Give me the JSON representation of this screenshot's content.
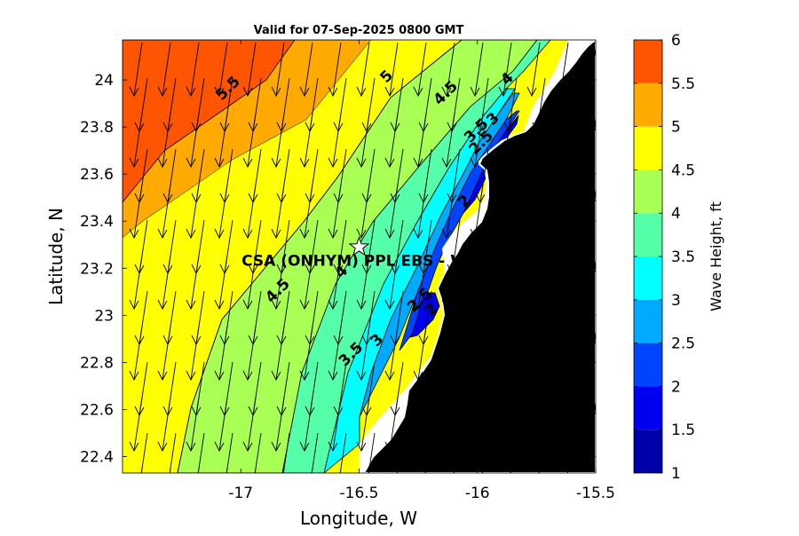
{
  "chart_data": {
    "type": "heatmap",
    "title": "Valid for 07-Sep-2025 0800 GMT",
    "xlabel": "Longitude, W",
    "ylabel": "Latitude, N",
    "xlim": [
      -17.5,
      -15.5
    ],
    "ylim": [
      22.33,
      24.17
    ],
    "x_ticks": [
      -17,
      -16.5,
      -16,
      -15.5
    ],
    "y_ticks": [
      22.4,
      22.6,
      22.8,
      23,
      23.2,
      23.4,
      23.6,
      23.8,
      24
    ],
    "colorbar": {
      "label": "Wave Height, ft",
      "ticks": [
        1,
        1.5,
        2,
        2.5,
        3,
        3.5,
        4,
        4.5,
        5,
        5.5,
        6
      ],
      "levels": [
        {
          "from": 1.0,
          "to": 1.5,
          "color": "#0000aa"
        },
        {
          "from": 1.5,
          "to": 2.0,
          "color": "#0000f0"
        },
        {
          "from": 2.0,
          "to": 2.5,
          "color": "#0044ff"
        },
        {
          "from": 2.5,
          "to": 3.0,
          "color": "#00aaff"
        },
        {
          "from": 3.0,
          "to": 3.5,
          "color": "#00ffff"
        },
        {
          "from": 3.5,
          "to": 4.0,
          "color": "#55ffaa"
        },
        {
          "from": 4.0,
          "to": 4.5,
          "color": "#aaff55"
        },
        {
          "from": 4.5,
          "to": 5.0,
          "color": "#ffff00"
        },
        {
          "from": 5.0,
          "to": 5.5,
          "color": "#ffaa00"
        },
        {
          "from": 5.5,
          "to": 6.0,
          "color": "#ff5500"
        }
      ]
    },
    "contour_labels": [
      {
        "text": "5.5",
        "lon": -17.04,
        "lat": 23.95
      },
      {
        "text": "5",
        "lon": -16.37,
        "lat": 24.0
      },
      {
        "text": "4.5",
        "lon": -16.12,
        "lat": 23.93
      },
      {
        "text": "4",
        "lon": -15.86,
        "lat": 23.99
      },
      {
        "text": "3.5",
        "lon": -15.99,
        "lat": 23.77
      },
      {
        "text": "3",
        "lon": -15.92,
        "lat": 23.82
      },
      {
        "text": "2.5",
        "lon": -15.97,
        "lat": 23.72
      },
      {
        "text": "2",
        "lon": -16.04,
        "lat": 23.47
      },
      {
        "text": "4.5",
        "lon": -16.83,
        "lat": 23.09
      },
      {
        "text": "4",
        "lon": -16.56,
        "lat": 23.17
      },
      {
        "text": "3.5",
        "lon": -16.52,
        "lat": 22.82
      },
      {
        "text": "3",
        "lon": -16.41,
        "lat": 22.88
      },
      {
        "text": "2.5",
        "lon": -16.23,
        "lat": 23.05
      },
      {
        "text": "2",
        "lon": -16.18,
        "lat": 23.01
      }
    ],
    "station": {
      "name": "CSA (ONHYM) PPL EBS  - We",
      "lon": -16.5,
      "lat": 23.29
    },
    "wave_direction": "from north-northeast",
    "land_color": "#000000"
  },
  "colors": {
    "contour_line": "#000000",
    "arrow": "#000000",
    "coast_outline": "#ffffff"
  }
}
